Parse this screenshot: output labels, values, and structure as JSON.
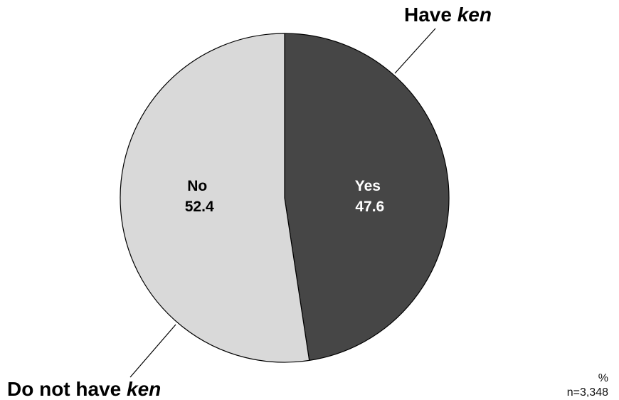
{
  "chart_data": {
    "type": "pie",
    "unit": "%",
    "sample": "n=3,348",
    "slices": [
      {
        "label": "Yes",
        "value": 47.6,
        "value_text": "47.6",
        "color": "#464646",
        "text_color": "#ffffff",
        "callout": {
          "prefix": "Have ",
          "emph": "ken"
        }
      },
      {
        "label": "No",
        "value": 52.4,
        "value_text": "52.4",
        "color": "#d9d9d9",
        "text_color": "#000000",
        "callout": {
          "prefix": "Do not have ",
          "emph": "ken"
        }
      }
    ],
    "start": "12 o'clock",
    "direction": "clockwise",
    "edge_color": "#000000"
  }
}
